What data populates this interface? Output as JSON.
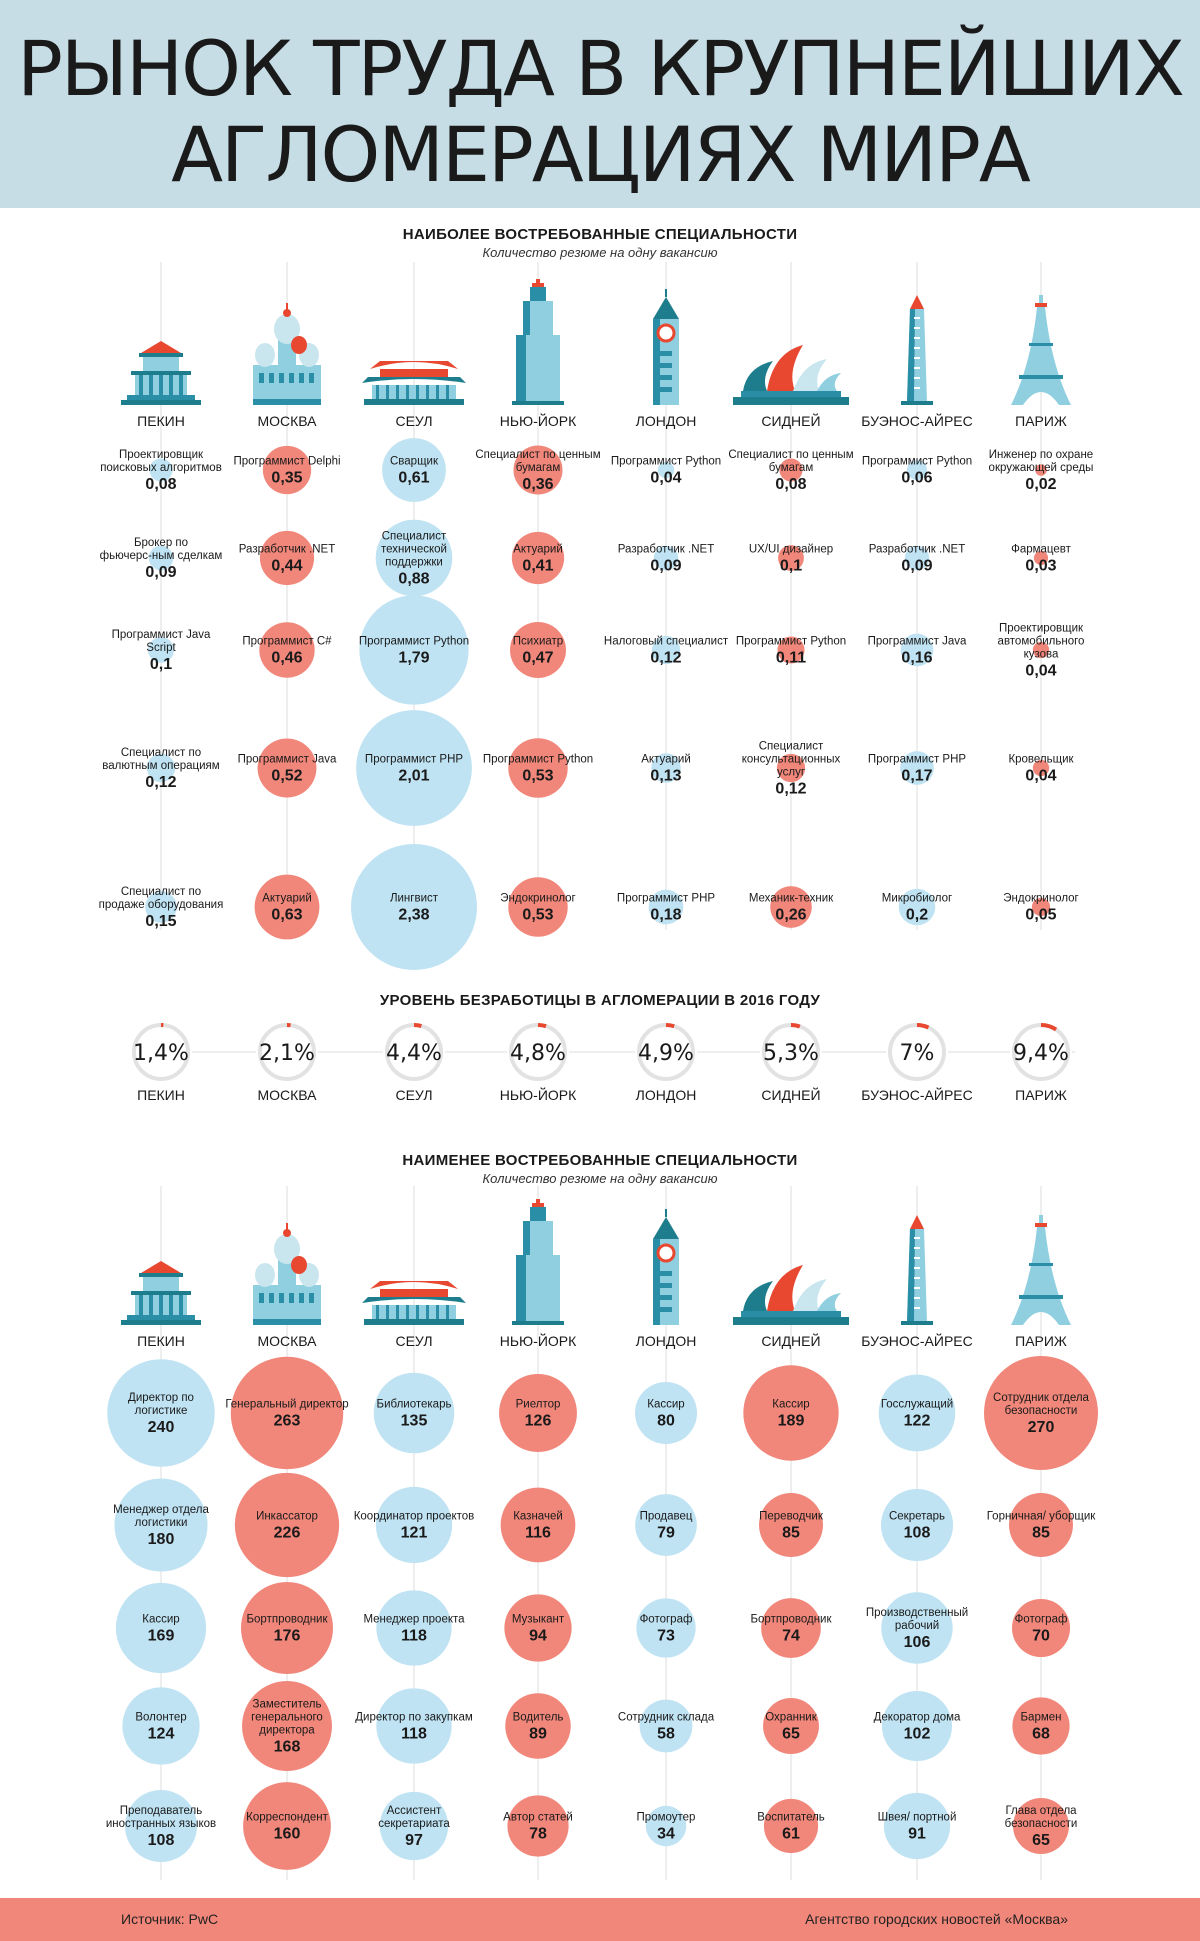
{
  "title": {
    "line1": "РЫНОК ТРУДА В КРУПНЕЙШИХ",
    "line2": "АГЛОМЕРАЦИЯХ МИРА"
  },
  "colors": {
    "header_bg": "#c6dde6",
    "blue": "#bfe3f3",
    "red": "#f1877a",
    "footer": "#f1877a",
    "ring": "#e2e2e2",
    "ring_accent": "#e8482f"
  },
  "cities": [
    "ПЕКИН",
    "МОСКВА",
    "СЕУЛ",
    "НЬЮ-ЙОРК",
    "ЛОНДОН",
    "СИДНЕЙ",
    "БУЭНОС-АЙРЕС",
    "ПАРИЖ"
  ],
  "city_icons": [
    "temple-icon",
    "cathedral-icon",
    "pagoda-icon",
    "skyscraper-icon",
    "clock-tower-icon",
    "opera-house-icon",
    "obelisk-icon",
    "eiffel-tower-icon"
  ],
  "most": {
    "title": "НАИБОЛЕЕ ВОСТРЕБОВАННЫЕ СПЕЦИАЛЬНОСТИ",
    "subtitle": "Количество резюме на одну вакансию"
  },
  "unemployment": {
    "title": "УРОВЕНЬ БЕЗРАБОТИЦЫ В АГЛОМЕРАЦИИ В 2016 ГОДУ"
  },
  "least": {
    "title": "НАИМЕНЕЕ ВОСТРЕБОВАННЫЕ СПЕЦИАЛЬНОСТИ",
    "subtitle": "Количество резюме на одну вакансию"
  },
  "chart_data": [
    {
      "type": "bubble",
      "title": "НАИБОЛЕЕ ВОСТРЕБОВАННЫЕ СПЕЦИАЛЬНОСТИ",
      "subtitle": "Количество резюме на одну вакансию",
      "series": [
        {
          "city": "ПЕКИН",
          "color": "blue",
          "items": [
            {
              "label": "Проектировщик поисковых алгоритмов",
              "value": 0.08,
              "display": "0,08"
            },
            {
              "label": "Брокер по фьючерс-ным сделкам",
              "value": 0.09,
              "display": "0,09"
            },
            {
              "label": "Программист Java Script",
              "value": 0.1,
              "display": "0,1"
            },
            {
              "label": "Специалист по валютным операциям",
              "value": 0.12,
              "display": "0,12"
            },
            {
              "label": "Специалист по продаже оборудования",
              "value": 0.15,
              "display": "0,15"
            }
          ]
        },
        {
          "city": "МОСКВА",
          "color": "red",
          "items": [
            {
              "label": "Программист Delphi",
              "value": 0.35,
              "display": "0,35"
            },
            {
              "label": "Разработчик .NET",
              "value": 0.44,
              "display": "0,44"
            },
            {
              "label": "Программист С#",
              "value": 0.46,
              "display": "0,46"
            },
            {
              "label": "Программист Java",
              "value": 0.52,
              "display": "0,52"
            },
            {
              "label": "Актуарий",
              "value": 0.63,
              "display": "0,63"
            }
          ]
        },
        {
          "city": "СЕУЛ",
          "color": "blue",
          "items": [
            {
              "label": "Сварщик",
              "value": 0.61,
              "display": "0,61"
            },
            {
              "label": "Специалист технической поддержки",
              "value": 0.88,
              "display": "0,88"
            },
            {
              "label": "Программист Python",
              "value": 1.79,
              "display": "1,79"
            },
            {
              "label": "Программист PHP",
              "value": 2.01,
              "display": "2,01"
            },
            {
              "label": "Лингвист",
              "value": 2.38,
              "display": "2,38"
            }
          ]
        },
        {
          "city": "НЬЮ-ЙОРК",
          "color": "red",
          "items": [
            {
              "label": "Специалист по ценным бумагам",
              "value": 0.36,
              "display": "0,36"
            },
            {
              "label": "Актуарий",
              "value": 0.41,
              "display": "0,41"
            },
            {
              "label": "Психиатр",
              "value": 0.47,
              "display": "0,47"
            },
            {
              "label": "Программист Python",
              "value": 0.53,
              "display": "0,53"
            },
            {
              "label": "Эндокринолог",
              "value": 0.53,
              "display": "0,53"
            }
          ]
        },
        {
          "city": "ЛОНДОН",
          "color": "blue",
          "items": [
            {
              "label": "Программист Python",
              "value": 0.04,
              "display": "0,04"
            },
            {
              "label": "Разработчик .NET",
              "value": 0.09,
              "display": "0,09"
            },
            {
              "label": "Налоговый специалист",
              "value": 0.12,
              "display": "0,12"
            },
            {
              "label": "Актуарий",
              "value": 0.13,
              "display": "0,13"
            },
            {
              "label": "Программист PHP",
              "value": 0.18,
              "display": "0,18"
            }
          ]
        },
        {
          "city": "СИДНЕЙ",
          "color": "red",
          "items": [
            {
              "label": "Специалист по ценным бумагам",
              "value": 0.08,
              "display": "0,08"
            },
            {
              "label": "UX/UI дизайнер",
              "value": 0.1,
              "display": "0,1"
            },
            {
              "label": "Программист Python",
              "value": 0.11,
              "display": "0,11"
            },
            {
              "label": "Специалист консультационных услуг",
              "value": 0.12,
              "display": "0,12"
            },
            {
              "label": "Механик-техник",
              "value": 0.26,
              "display": "0,26"
            }
          ]
        },
        {
          "city": "БУЭНОС-АЙРЕС",
          "color": "blue",
          "items": [
            {
              "label": "Программист Python",
              "value": 0.06,
              "display": "0,06"
            },
            {
              "label": "Разработчик .NET",
              "value": 0.09,
              "display": "0,09"
            },
            {
              "label": "Программист Java",
              "value": 0.16,
              "display": "0,16"
            },
            {
              "label": "Программист PHP",
              "value": 0.17,
              "display": "0,17"
            },
            {
              "label": "Микробиолог",
              "value": 0.2,
              "display": "0,2"
            }
          ]
        },
        {
          "city": "ПАРИЖ",
          "color": "red",
          "items": [
            {
              "label": "Инженер по охране окружающей среды",
              "value": 0.02,
              "display": "0,02"
            },
            {
              "label": "Фармацевт",
              "value": 0.03,
              "display": "0,03"
            },
            {
              "label": "Проектировщик автомобильного кузова",
              "value": 0.04,
              "display": "0,04"
            },
            {
              "label": "Кровельщик",
              "value": 0.04,
              "display": "0,04"
            },
            {
              "label": "Эндокринолог",
              "value": 0.05,
              "display": "0,05"
            }
          ]
        }
      ]
    },
    {
      "type": "donut",
      "title": "УРОВЕНЬ БЕЗРАБОТИЦЫ В АГЛОМЕРАЦИИ В 2016 ГОДУ",
      "categories": [
        "ПЕКИН",
        "МОСКВА",
        "СЕУЛ",
        "НЬЮ-ЙОРК",
        "ЛОНДОН",
        "СИДНЕЙ",
        "БУЭНОС-АЙРЕС",
        "ПАРИЖ"
      ],
      "values": [
        1.4,
        2.1,
        4.4,
        4.8,
        4.9,
        5.3,
        7,
        9.4
      ],
      "display": [
        "1,4%",
        "2,1%",
        "4,4%",
        "4,8%",
        "4,9%",
        "5,3%",
        "7%",
        "9,4%"
      ]
    },
    {
      "type": "bubble",
      "title": "НАИМЕНЕЕ ВОСТРЕБОВАННЫЕ СПЕЦИАЛЬНОСТИ",
      "subtitle": "Количество резюме на одну вакансию",
      "series": [
        {
          "city": "ПЕКИН",
          "color": "blue",
          "items": [
            {
              "label": "Директор по логистике",
              "value": 240,
              "display": "240"
            },
            {
              "label": "Менеджер отдела логистики",
              "value": 180,
              "display": "180"
            },
            {
              "label": "Кассир",
              "value": 169,
              "display": "169"
            },
            {
              "label": "Волонтер",
              "value": 124,
              "display": "124"
            },
            {
              "label": "Преподаватель иностранных языков",
              "value": 108,
              "display": "108"
            }
          ]
        },
        {
          "city": "МОСКВА",
          "color": "red",
          "items": [
            {
              "label": "Генеральный директор",
              "value": 263,
              "display": "263"
            },
            {
              "label": "Инкассатор",
              "value": 226,
              "display": "226"
            },
            {
              "label": "Бортпроводник",
              "value": 176,
              "display": "176"
            },
            {
              "label": "Заместитель генерального директора",
              "value": 168,
              "display": "168"
            },
            {
              "label": "Корреспондент",
              "value": 160,
              "display": "160"
            }
          ]
        },
        {
          "city": "СЕУЛ",
          "color": "blue",
          "items": [
            {
              "label": "Библиотекарь",
              "value": 135,
              "display": "135"
            },
            {
              "label": "Координатор проектов",
              "value": 121,
              "display": "121"
            },
            {
              "label": "Менеджер проекта",
              "value": 118,
              "display": "118"
            },
            {
              "label": "Директор по закупкам",
              "value": 118,
              "display": "118"
            },
            {
              "label": "Ассистент секретариата",
              "value": 97,
              "display": "97"
            }
          ]
        },
        {
          "city": "НЬЮ-ЙОРК",
          "color": "red",
          "items": [
            {
              "label": "Риелтор",
              "value": 126,
              "display": "126"
            },
            {
              "label": "Казначей",
              "value": 116,
              "display": "116"
            },
            {
              "label": "Музыкант",
              "value": 94,
              "display": "94"
            },
            {
              "label": "Водитель",
              "value": 89,
              "display": "89"
            },
            {
              "label": "Автор статей",
              "value": 78,
              "display": "78"
            }
          ]
        },
        {
          "city": "ЛОНДОН",
          "color": "blue",
          "items": [
            {
              "label": "Кассир",
              "value": 80,
              "display": "80"
            },
            {
              "label": "Продавец",
              "value": 79,
              "display": "79"
            },
            {
              "label": "Фотограф",
              "value": 73,
              "display": "73"
            },
            {
              "label": "Сотрудник склада",
              "value": 58,
              "display": "58"
            },
            {
              "label": "Промоутер",
              "value": 34,
              "display": "34"
            }
          ]
        },
        {
          "city": "СИДНЕЙ",
          "color": "red",
          "items": [
            {
              "label": "Кассир",
              "value": 189,
              "display": "189"
            },
            {
              "label": "Переводчик",
              "value": 85,
              "display": "85"
            },
            {
              "label": "Бортпроводник",
              "value": 74,
              "display": "74"
            },
            {
              "label": "Охранник",
              "value": 65,
              "display": "65"
            },
            {
              "label": "Воспитатель",
              "value": 61,
              "display": "61"
            }
          ]
        },
        {
          "city": "БУЭНОС-АЙРЕС",
          "color": "blue",
          "items": [
            {
              "label": "Госслужащий",
              "value": 122,
              "display": "122"
            },
            {
              "label": "Секретарь",
              "value": 108,
              "display": "108"
            },
            {
              "label": "Производственный рабочий",
              "value": 106,
              "display": "106"
            },
            {
              "label": "Декоратор дома",
              "value": 102,
              "display": "102"
            },
            {
              "label": "Швея/ портной",
              "value": 91,
              "display": "91"
            }
          ]
        },
        {
          "city": "ПАРИЖ",
          "color": "red",
          "items": [
            {
              "label": "Сотрудник отдела безопасности",
              "value": 270,
              "display": "270"
            },
            {
              "label": "Горничная/ уборщик",
              "value": 85,
              "display": "85"
            },
            {
              "label": "Фотограф",
              "value": 70,
              "display": "70"
            },
            {
              "label": "Бармен",
              "value": 68,
              "display": "68"
            },
            {
              "label": "Глава отдела безопасности",
              "value": 65,
              "display": "65"
            }
          ]
        }
      ]
    }
  ],
  "footer": {
    "source": "Источник: PwC",
    "agency": "Агентство городских новостей «Москва»"
  }
}
